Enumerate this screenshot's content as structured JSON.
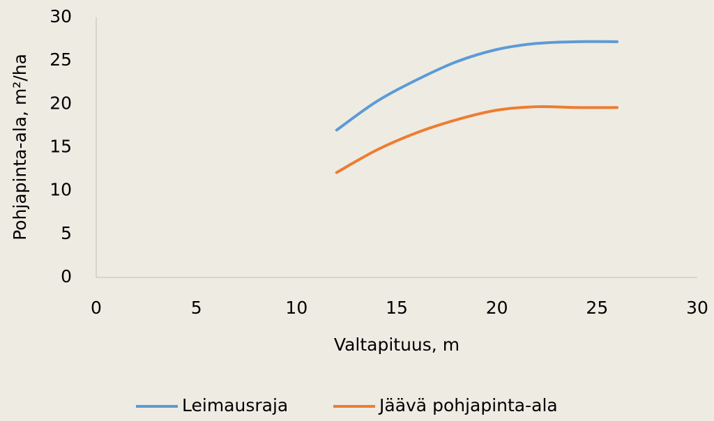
{
  "chart_data": {
    "type": "line",
    "xlabel": "Valtapituus, m",
    "ylabel": "Pohjapinta-ala, m²/ha",
    "xlim": [
      0,
      30
    ],
    "xticks": [
      0,
      5,
      10,
      15,
      20,
      25,
      30
    ],
    "ylim": [
      0,
      30
    ],
    "yticks": [
      0,
      5,
      10,
      15,
      20,
      25,
      30
    ],
    "grid": false,
    "legend": "bottom",
    "smooth": true,
    "series": [
      {
        "name": "Leimausraja",
        "color": "#5b9bd5",
        "x": [
          12,
          14,
          16,
          18,
          20,
          22,
          24,
          26
        ],
        "values": [
          17.0,
          20.3,
          22.8,
          24.9,
          26.3,
          27.0,
          27.2,
          27.2
        ]
      },
      {
        "name": "Jäävä pohjapinta-ala",
        "color": "#ed7d31",
        "x": [
          12,
          14,
          16,
          18,
          20,
          22,
          24,
          26
        ],
        "values": [
          12.1,
          14.7,
          16.7,
          18.2,
          19.3,
          19.7,
          19.6,
          19.6
        ]
      }
    ]
  }
}
